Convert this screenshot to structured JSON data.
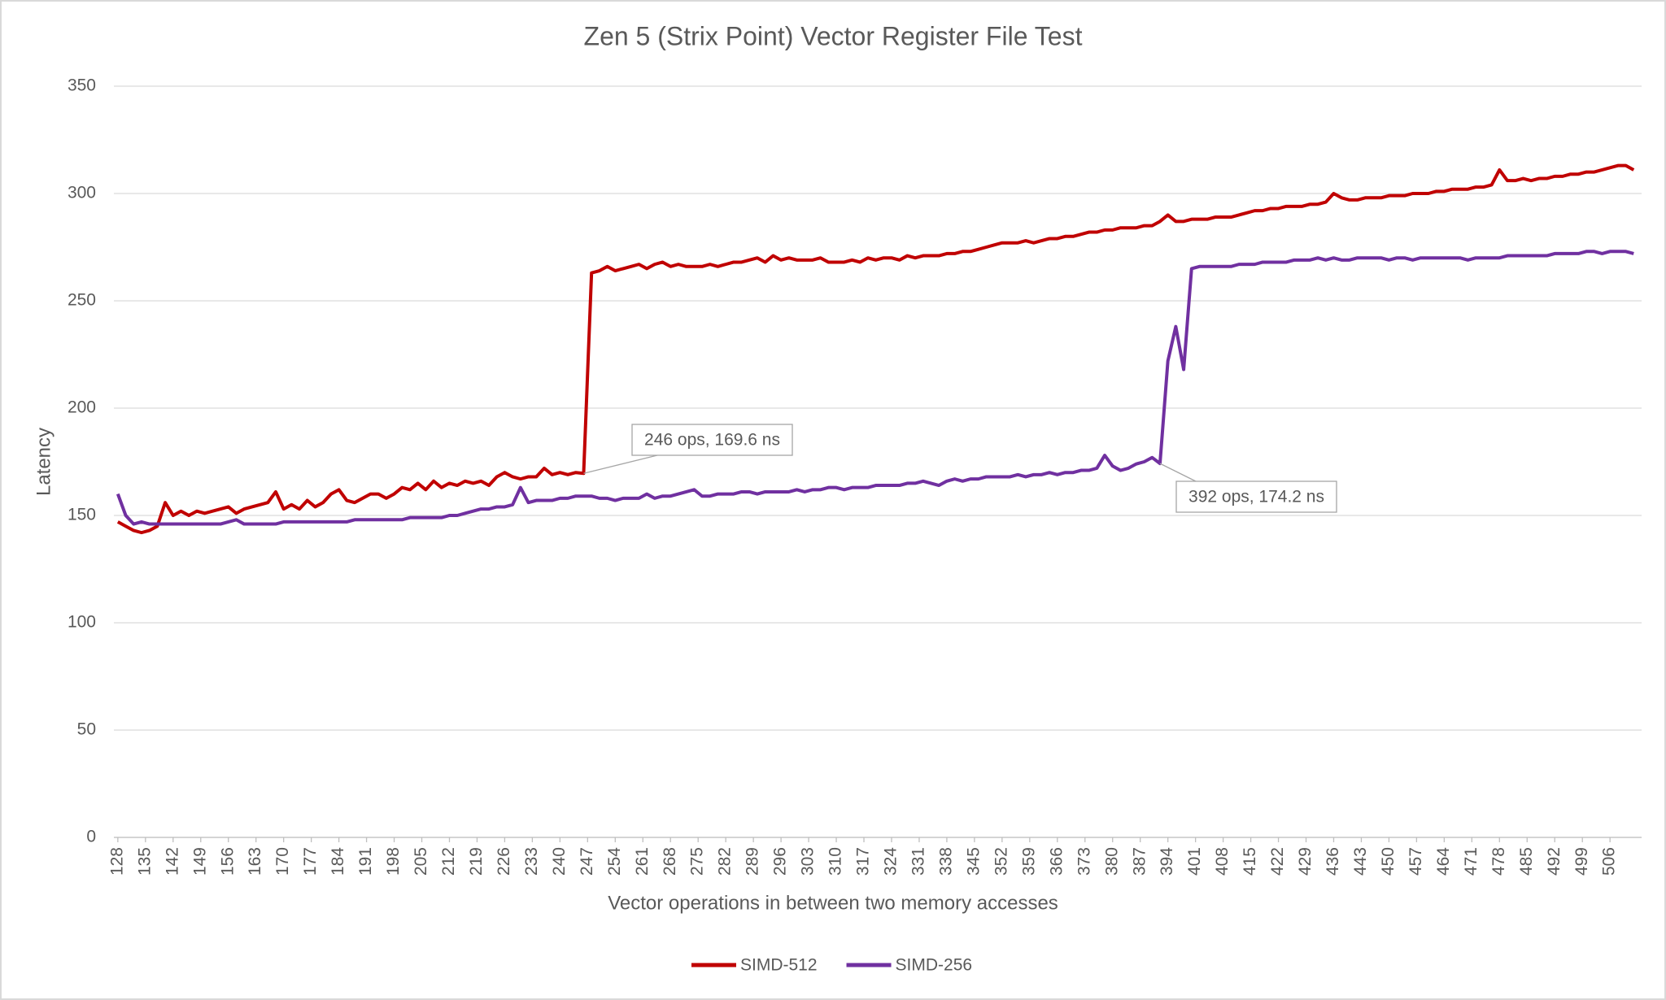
{
  "chart_data": {
    "type": "line",
    "title": "Zen 5 (Strix Point) Vector Register File Test",
    "x_label": "Vector operations in between two memory accesses",
    "y_label": "Latency",
    "xlim": [
      127,
      514
    ],
    "xticks": [
      128,
      135,
      142,
      149,
      156,
      163,
      170,
      177,
      184,
      191,
      198,
      205,
      212,
      219,
      226,
      233,
      240,
      247,
      254,
      261,
      268,
      275,
      282,
      289,
      296,
      303,
      310,
      317,
      324,
      331,
      338,
      345,
      352,
      359,
      366,
      373,
      380,
      387,
      394,
      401,
      408,
      415,
      422,
      429,
      436,
      443,
      450,
      457,
      464,
      471,
      478,
      485,
      492,
      499,
      506
    ],
    "ylim": [
      0,
      350
    ],
    "yticks": [
      0,
      50,
      100,
      150,
      200,
      250,
      300,
      350
    ],
    "grid": true,
    "legend": "bottom",
    "x": [
      128,
      130,
      132,
      134,
      136,
      138,
      140,
      142,
      144,
      146,
      148,
      150,
      152,
      154,
      156,
      158,
      160,
      162,
      164,
      166,
      168,
      170,
      172,
      174,
      176,
      178,
      180,
      182,
      184,
      186,
      188,
      190,
      192,
      194,
      196,
      198,
      200,
      202,
      204,
      206,
      208,
      210,
      212,
      214,
      216,
      218,
      220,
      222,
      224,
      226,
      228,
      230,
      232,
      234,
      236,
      238,
      240,
      242,
      244,
      246,
      248,
      250,
      252,
      254,
      256,
      258,
      260,
      262,
      264,
      266,
      268,
      270,
      272,
      274,
      276,
      278,
      280,
      282,
      284,
      286,
      288,
      290,
      292,
      294,
      296,
      298,
      300,
      302,
      304,
      306,
      308,
      310,
      312,
      314,
      316,
      318,
      320,
      322,
      324,
      326,
      328,
      330,
      332,
      334,
      336,
      338,
      340,
      342,
      344,
      346,
      348,
      350,
      352,
      354,
      356,
      358,
      360,
      362,
      364,
      366,
      368,
      370,
      372,
      374,
      376,
      378,
      380,
      382,
      384,
      386,
      388,
      390,
      392,
      394,
      396,
      398,
      400,
      402,
      404,
      406,
      408,
      410,
      412,
      414,
      416,
      418,
      420,
      422,
      424,
      426,
      428,
      430,
      432,
      434,
      436,
      438,
      440,
      442,
      444,
      446,
      448,
      450,
      452,
      454,
      456,
      458,
      460,
      462,
      464,
      466,
      468,
      470,
      472,
      474,
      476,
      478,
      480,
      482,
      484,
      486,
      488,
      490,
      492,
      494,
      496,
      498,
      500,
      502,
      504,
      506,
      508,
      510,
      512
    ],
    "series": [
      {
        "name": "SIMD-512",
        "color": "#c00000",
        "values": [
          147,
          145,
          143,
          142,
          143,
          145,
          156,
          150,
          152,
          150,
          152,
          151,
          152,
          153,
          154,
          151,
          153,
          154,
          155,
          156,
          161,
          153,
          155,
          153,
          157,
          154,
          156,
          160,
          162,
          157,
          156,
          158,
          160,
          160,
          158,
          160,
          163,
          162,
          165,
          162,
          166,
          163,
          165,
          164,
          166,
          165,
          166,
          164,
          168,
          170,
          168,
          167,
          168,
          168,
          172,
          169,
          170,
          169,
          170,
          169.6,
          263,
          264,
          266,
          264,
          265,
          266,
          267,
          265,
          267,
          268,
          266,
          267,
          266,
          266,
          266,
          267,
          266,
          267,
          268,
          268,
          269,
          270,
          268,
          271,
          269,
          270,
          269,
          269,
          269,
          270,
          268,
          268,
          268,
          269,
          268,
          270,
          269,
          270,
          270,
          269,
          271,
          270,
          271,
          271,
          271,
          272,
          272,
          273,
          273,
          274,
          275,
          276,
          277,
          277,
          277,
          278,
          277,
          278,
          279,
          279,
          280,
          280,
          281,
          282,
          282,
          283,
          283,
          284,
          284,
          284,
          285,
          285,
          287,
          290,
          287,
          287,
          288,
          288,
          288,
          289,
          289,
          289,
          290,
          291,
          292,
          292,
          293,
          293,
          294,
          294,
          294,
          295,
          295,
          296,
          300,
          298,
          297,
          297,
          298,
          298,
          298,
          299,
          299,
          299,
          300,
          300,
          300,
          301,
          301,
          302,
          302,
          302,
          303,
          303,
          304,
          311,
          306,
          306,
          307,
          306,
          307,
          307,
          308,
          308,
          309,
          309,
          310,
          310,
          311,
          312,
          313,
          313,
          311
        ]
      },
      {
        "name": "SIMD-256",
        "color": "#7030a0",
        "values": [
          160,
          150,
          146,
          147,
          146,
          146,
          146,
          146,
          146,
          146,
          146,
          146,
          146,
          146,
          147,
          148,
          146,
          146,
          146,
          146,
          146,
          147,
          147,
          147,
          147,
          147,
          147,
          147,
          147,
          147,
          148,
          148,
          148,
          148,
          148,
          148,
          148,
          149,
          149,
          149,
          149,
          149,
          150,
          150,
          151,
          152,
          153,
          153,
          154,
          154,
          155,
          163,
          156,
          157,
          157,
          157,
          158,
          158,
          159,
          159,
          159,
          158,
          158,
          157,
          158,
          158,
          158,
          160,
          158,
          159,
          159,
          160,
          161,
          162,
          159,
          159,
          160,
          160,
          160,
          161,
          161,
          160,
          161,
          161,
          161,
          161,
          162,
          161,
          162,
          162,
          163,
          163,
          162,
          163,
          163,
          163,
          164,
          164,
          164,
          164,
          165,
          165,
          166,
          165,
          164,
          166,
          167,
          166,
          167,
          167,
          168,
          168,
          168,
          168,
          169,
          168,
          169,
          169,
          170,
          169,
          170,
          170,
          171,
          171,
          172,
          178,
          173,
          171,
          172,
          174,
          175,
          177,
          174.2,
          222,
          238,
          218,
          265,
          266,
          266,
          266,
          266,
          266,
          267,
          267,
          267,
          268,
          268,
          268,
          268,
          269,
          269,
          269,
          270,
          269,
          270,
          269,
          269,
          270,
          270,
          270,
          270,
          269,
          270,
          270,
          269,
          270,
          270,
          270,
          270,
          270,
          270,
          269,
          270,
          270,
          270,
          270,
          271,
          271,
          271,
          271,
          271,
          271,
          272,
          272,
          272,
          272,
          273,
          273,
          272,
          273,
          273,
          273,
          272
        ]
      }
    ],
    "annotations": [
      {
        "text": "246 ops, 169.6 ns",
        "series": 0,
        "x": 246,
        "y": 169.6
      },
      {
        "text": "392 ops, 174.2 ns",
        "series": 1,
        "x": 392,
        "y": 174.2
      }
    ]
  }
}
